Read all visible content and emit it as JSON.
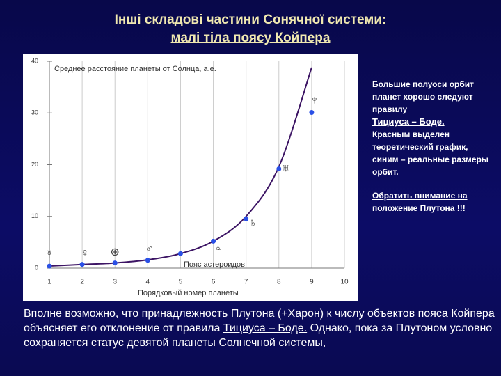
{
  "slide": {
    "title": [
      "Інші складові частини Сонячної системи:",
      "малі тіла поясу Койпера"
    ],
    "side_note": {
      "text1": "Большие полуоси орбит планет хорошо следуют правилу",
      "link": "Тициуса – Боде.",
      "text2": "Красным выделен теоретический график, синим – реальные размеры орбит.",
      "emphasis": "Обратить внимание на положение Плутона !!!"
    },
    "bottom": {
      "text1": "Вполне возможно, что принадлежность Плутона (+Харон) к числу объектов пояса Койпера объясняет его отклонение от правила",
      "link": "Тициуса – Боде.",
      "text2": "Однако, пока за Плутоном условно сохраняется статус девятой планеты Солнечной системы,"
    }
  },
  "chart_data": {
    "type": "line",
    "ylabel": "Среднее расстояние планеты от Солнца, а.е.",
    "xlabel": "Порядковый номер планеты",
    "x": [
      1,
      2,
      3,
      4,
      5,
      6,
      7,
      8,
      9
    ],
    "series": [
      {
        "type": "line",
        "color": "#3c1464",
        "values": [
          0.4,
          0.7,
          1.0,
          1.6,
          2.8,
          5.2,
          10.0,
          19.6,
          38.8
        ]
      },
      {
        "type": "scatter",
        "color": "#2a50e6",
        "values": [
          0.39,
          0.72,
          1.0,
          1.52,
          2.8,
          5.2,
          9.54,
          19.2,
          30.1
        ]
      }
    ],
    "point_labels": [
      "☿",
      "♀",
      "⊕",
      "♂",
      null,
      "♃",
      "♄",
      "♅",
      "♆"
    ],
    "annotation": "Пояс астероидов",
    "xlim": [
      1,
      10
    ],
    "xticks": [
      1,
      2,
      3,
      4,
      5,
      6,
      7,
      8,
      9,
      10
    ],
    "ylim": [
      0,
      40
    ],
    "yticks": [
      0,
      10,
      20,
      30,
      40
    ],
    "grid": true
  }
}
